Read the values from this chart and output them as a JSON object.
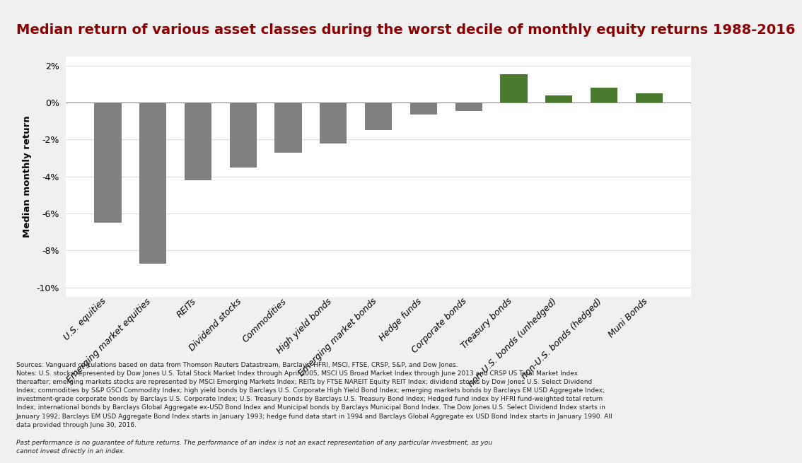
{
  "categories": [
    "U.S. equities",
    "Emerging market equities",
    "REITs",
    "Dividend stocks",
    "Commodities",
    "High yield bonds",
    "Emerging market bonds",
    "Hedge funds",
    "Corporate bonds",
    "Treasury bonds",
    "non-U.S. bonds (unhedged)",
    "non-U.S. bonds (hedged)",
    "Muni Bonds"
  ],
  "values": [
    -6.5,
    -8.7,
    -4.2,
    -3.5,
    -2.7,
    -2.2,
    -1.5,
    -0.65,
    -0.45,
    1.55,
    0.4,
    0.8,
    0.5
  ],
  "bar_colors_neg": "#808080",
  "bar_colors_pos": "#4a7a2e",
  "title": "Median return of various asset classes during the worst decile of monthly equity returns 1988-2016",
  "title_color": "#8b0000",
  "ylabel": "Median monthly return",
  "ylim": [
    -10.5,
    2.5
  ],
  "yticks": [
    -10,
    -8,
    -6,
    -4,
    -2,
    0,
    2
  ],
  "background_color": "#f0f0f0",
  "plot_background": "#ffffff",
  "title_fontsize": 14,
  "footnote_regular": "Sources: Vanguard calculations based on data from Thomson Reuters Datastream, Barclays, HFRI, MSCI, FTSE, CRSP, S&P, and Dow Jones.\nNotes: U.S. stocks represented by Dow Jones U.S. Total Stock Market Index through April 2005, MSCI US Broad Market Index through June 2013 and CRSP US Total Market Index\nthereafter; emerging markets stocks are represented by MSCI Emerging Markets Index; REITs by FTSE NAREIT Equity REIT Index; dividend stocks by Dow Jones U.S. Select Dividend\nIndex; commodities by S&P GSCI Commodity Index; high yield bonds by Barclays U.S. Corporate High Yield Bond Index; emerging markets bonds by Barclays EM USD Aggregate Index;\ninvestment-grade corporate bonds by Barclays U.S. Corporate Index; U.S. Treasury bonds by Barclays U.S. Treasury Bond Index; Hedged fund index by HFRI fund-weighted total return\nIndex; international bonds by Barclays Global Aggregate ex-USD Bond Index and Municipal bonds by Barclays Municipal Bond Index. The Dow Jones U.S. Select Dividend Index starts in\nJanuary 1992; Barclays EM USD Aggregate Bond Index starts in January 1993; hedge fund data start in 1994 and Barclays Global Aggregate ex USD Bond Index starts in January 1990. All\ndata provided through June 30, 2016. ",
  "footnote_italic": "Past performance is no guarantee of future returns. The performance of an index is not an exact representation of any particular investment, as you\ncannot invest directly in an index."
}
